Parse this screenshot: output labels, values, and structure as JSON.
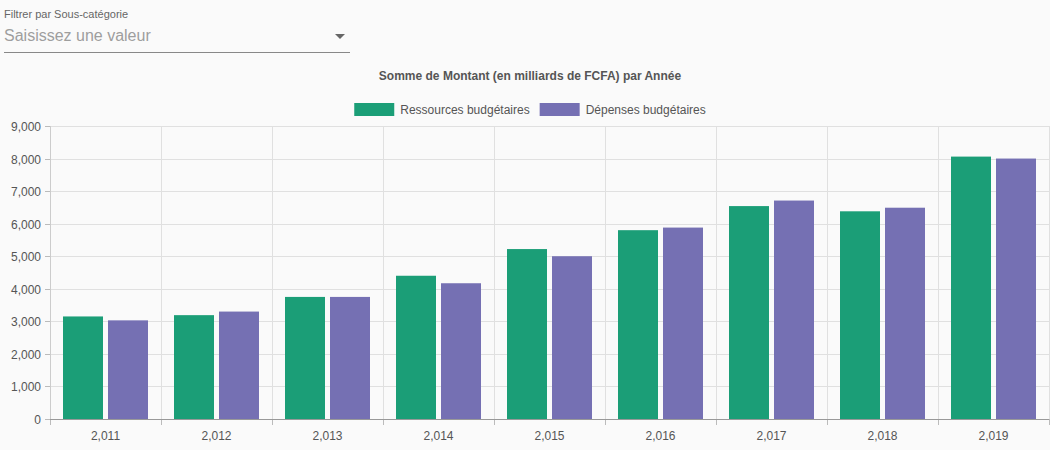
{
  "filter": {
    "label": "Filtrer par Sous-catégorie",
    "placeholder": "Saisissez une valeur"
  },
  "chart_data": {
    "type": "bar",
    "title": "Somme de Montant (en milliards de FCFA) par Année",
    "categories": [
      "2,011",
      "2,012",
      "2,013",
      "2,014",
      "2,015",
      "2,016",
      "2,017",
      "2,018",
      "2,019"
    ],
    "series": [
      {
        "name": "Ressources budgétaires",
        "color": "#1b9e77",
        "values": [
          3150,
          3190,
          3750,
          4400,
          5220,
          5800,
          6540,
          6380,
          8060
        ]
      },
      {
        "name": "Dépenses budgétaires",
        "color": "#7570b3",
        "values": [
          3030,
          3300,
          3750,
          4170,
          5000,
          5880,
          6710,
          6490,
          8000
        ]
      }
    ],
    "ylim": [
      0,
      9000
    ],
    "yticks": [
      0,
      {
        "value": 1000,
        "label": "1,000"
      },
      {
        "value": 2000,
        "label": "2,000"
      },
      {
        "value": 3000,
        "label": "3,000"
      },
      {
        "value": 4000,
        "label": "4,000"
      },
      {
        "value": 5000,
        "label": "5,000"
      },
      {
        "value": 6000,
        "label": "6,000"
      },
      {
        "value": 7000,
        "label": "7,000"
      },
      {
        "value": 8000,
        "label": "8,000"
      },
      {
        "value": 9000,
        "label": "9,000"
      }
    ],
    "grid": true,
    "legend": "top"
  }
}
